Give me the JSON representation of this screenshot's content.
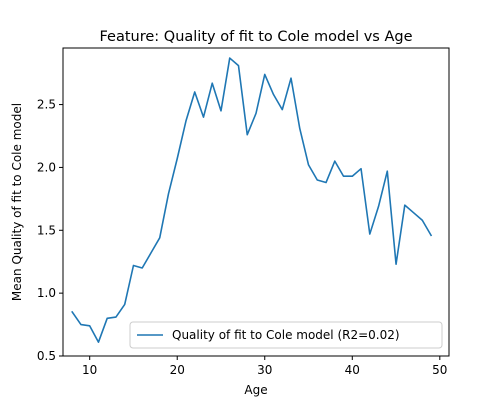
{
  "chart_data": {
    "type": "line",
    "title": "Feature: Quality of fit to Cole model vs Age",
    "xlabel": "Age",
    "ylabel": "Mean Quality of fit to Cole model",
    "xlim": [
      6.95,
      51.05
    ],
    "ylim": [
      0.5,
      2.95
    ],
    "x_ticks": [
      10,
      20,
      30,
      40,
      50
    ],
    "y_ticks": [
      0.5,
      1.0,
      1.5,
      2.0,
      2.5
    ],
    "x_tick_labels": [
      "10",
      "20",
      "30",
      "40",
      "50"
    ],
    "y_tick_labels": [
      "0.5",
      "1.0",
      "1.5",
      "2.0",
      "2.5"
    ],
    "grid": false,
    "legend_position": "lower right",
    "series": [
      {
        "name": "Quality of fit to Cole model (R2=0.02)",
        "color": "#1f77b4",
        "x": [
          8,
          9,
          10,
          11,
          12,
          13,
          14,
          15,
          16,
          17,
          18,
          19,
          20,
          21,
          22,
          23,
          24,
          25,
          26,
          27,
          28,
          29,
          30,
          31,
          32,
          33,
          34,
          35,
          36,
          37,
          38,
          39,
          40,
          41,
          42,
          43,
          44,
          45,
          46,
          47,
          48,
          49
        ],
        "y": [
          0.85,
          0.75,
          0.74,
          0.61,
          0.8,
          0.81,
          0.91,
          1.22,
          1.2,
          1.32,
          1.44,
          1.79,
          2.07,
          2.37,
          2.6,
          2.4,
          2.67,
          2.45,
          2.87,
          2.81,
          2.26,
          2.43,
          2.74,
          2.58,
          2.46,
          2.71,
          2.31,
          2.02,
          1.9,
          1.88,
          2.05,
          1.93,
          1.93,
          1.99,
          1.47,
          1.69,
          1.97,
          1.23,
          1.7,
          1.64,
          1.58,
          1.46
        ]
      }
    ]
  }
}
